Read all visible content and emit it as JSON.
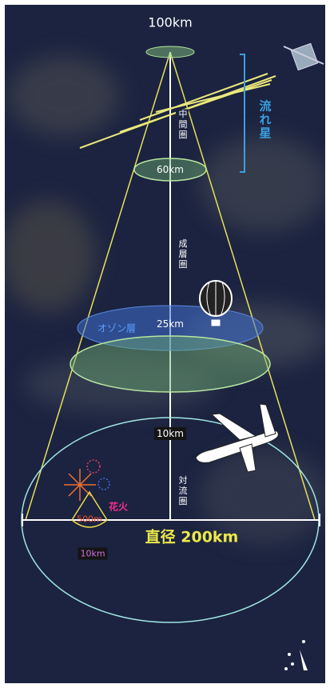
{
  "labels": {
    "top_altitude": "100km",
    "meteor": "流れ星",
    "mesosphere": "中間圏",
    "mesosphere_altitude": "60km",
    "stratosphere": "成層圏",
    "ozone": "オゾン層",
    "stratosphere_altitude": "25km",
    "troposphere_altitude": "10km",
    "troposphere": "対流圏",
    "fireworks": "花火",
    "fireworks_height": "500m",
    "fireworks_range": "10km",
    "diameter": "直径 200km"
  }
}
